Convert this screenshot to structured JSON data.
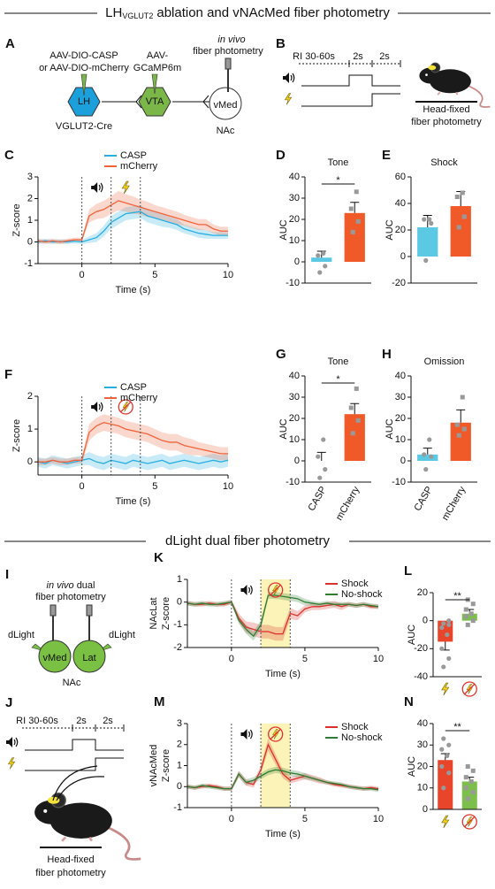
{
  "sections": [
    {
      "title_main": "LH",
      "title_sub": "VGLUT2",
      "title_rest": "ablation and vNAcMed fiber photometry"
    },
    {
      "title": "dLight dual fiber photometry"
    }
  ],
  "diagrams": {
    "A": {
      "panel": "A",
      "lh_virus": "AAV-DIO-CASP",
      "lh_virus2": "or AAV-DIO-mCherry",
      "vta_virus": "AAV-",
      "vta_virus2": "GCaMP6m",
      "fiber1": "in vivo",
      "fiber2": "fiber photometry",
      "lh": "LH",
      "vta": "VTA",
      "vmed": "vMed",
      "mouse": "VGLUT2-Cre",
      "nac": "NAc"
    },
    "B": {
      "panel": "B",
      "ri": "RI 30-60s",
      "t1": "2s",
      "t2": "2s",
      "caption1": "Head-fixed",
      "caption2": "fiber photometry"
    },
    "I": {
      "panel": "I",
      "fiber1a": "in vivo",
      "fiber1b": "dual",
      "fiber2": "fiber photometry",
      "dlight1": "dLight",
      "dlight2": "dLight",
      "vmed": "vMed",
      "lat": "Lat",
      "nac": "NAc"
    },
    "J": {
      "panel": "J",
      "ri": "RI 30-60s",
      "t1": "2s",
      "t2": "2s",
      "caption1": "Head-fixed",
      "caption2": "fiber photometry"
    }
  },
  "chart_data": [
    {
      "type": "line",
      "panel": "C",
      "xlabel": "Time (s)",
      "ylabel": "Z-score",
      "x": [
        -3,
        -2.5,
        -2,
        -1.5,
        -1,
        -0.5,
        0,
        0.5,
        1,
        1.5,
        2,
        2.5,
        3,
        3.5,
        4,
        4.5,
        5,
        5.5,
        6,
        6.5,
        7,
        7.5,
        8,
        8.5,
        9,
        9.5,
        10
      ],
      "xlim": [
        -3,
        10
      ],
      "xticks": [
        0,
        5,
        10
      ],
      "ylim": [
        -1,
        3
      ],
      "yticks": [
        -1,
        0,
        1,
        2,
        3
      ],
      "markers": [
        0,
        2,
        4
      ],
      "series": [
        {
          "name": "CASP",
          "color": "#29aee0",
          "values": [
            0,
            0.05,
            0,
            0.02,
            0,
            0.03,
            0,
            0.1,
            0.2,
            0.5,
            0.9,
            1.1,
            1.3,
            1.35,
            1.4,
            1.2,
            1.1,
            1.0,
            0.9,
            0.8,
            0.6,
            0.5,
            0.4,
            0.35,
            0.3,
            0.3,
            0.3
          ],
          "errors": [
            0.1,
            0.1,
            0.1,
            0.1,
            0.1,
            0.1,
            0.1,
            0.15,
            0.2,
            0.25,
            0.3,
            0.3,
            0.3,
            0.3,
            0.3,
            0.3,
            0.3,
            0.3,
            0.25,
            0.25,
            0.2,
            0.2,
            0.2,
            0.2,
            0.15,
            0.15,
            0.15
          ]
        },
        {
          "name": "mCherry",
          "color": "#f0643c",
          "values": [
            0.05,
            0,
            0.05,
            0,
            0.05,
            0.1,
            0.1,
            1.2,
            1.4,
            1.5,
            1.7,
            1.9,
            1.8,
            1.7,
            1.6,
            1.5,
            1.4,
            1.3,
            1.2,
            1.1,
            1.0,
            0.9,
            0.8,
            0.8,
            0.6,
            0.5,
            0.5
          ],
          "errors": [
            0.1,
            0.1,
            0.1,
            0.1,
            0.1,
            0.1,
            0.1,
            0.3,
            0.35,
            0.4,
            0.4,
            0.45,
            0.4,
            0.4,
            0.35,
            0.35,
            0.3,
            0.3,
            0.3,
            0.3,
            0.25,
            0.25,
            0.25,
            0.25,
            0.2,
            0.2,
            0.2
          ]
        }
      ]
    },
    {
      "type": "bar",
      "panel": "D",
      "title": "Tone",
      "ylabel": "AUC",
      "categories": [
        null,
        null
      ],
      "colors": [
        "#5bc8e4",
        "#f05a28"
      ],
      "values": [
        2,
        23
      ],
      "errors": [
        3,
        5
      ],
      "points": [
        [
          -5,
          -2,
          3,
          4
        ],
        [
          14,
          19,
          25,
          33
        ]
      ],
      "ylim": [
        -10,
        40
      ],
      "yticks": [
        -10,
        0,
        10,
        20,
        30,
        40
      ],
      "significance": "*"
    },
    {
      "type": "bar",
      "panel": "E",
      "title": "Shock",
      "ylabel": "AUC",
      "categories": [
        null,
        null
      ],
      "colors": [
        "#5bc8e4",
        "#f05a28"
      ],
      "values": [
        22,
        38
      ],
      "errors": [
        9,
        11
      ],
      "points": [
        [
          -3,
          25,
          28,
          28
        ],
        [
          22,
          30,
          45,
          48
        ]
      ],
      "ylim": [
        -20,
        60
      ],
      "yticks": [
        -20,
        0,
        20,
        40,
        60
      ]
    },
    {
      "type": "line",
      "panel": "F",
      "xlabel": "Time (s)",
      "ylabel": "Z-score",
      "x": [
        -3,
        -2.5,
        -2,
        -1.5,
        -1,
        -0.5,
        0,
        0.5,
        1,
        1.5,
        2,
        2.5,
        3,
        3.5,
        4,
        4.5,
        5,
        5.5,
        6,
        6.5,
        7,
        7.5,
        8,
        8.5,
        9,
        9.5,
        10
      ],
      "xlim": [
        -3,
        10
      ],
      "xticks": [
        0,
        5,
        10
      ],
      "ylim": [
        -0.4,
        2
      ],
      "yticks": [
        0,
        1,
        2
      ],
      "markers": [
        0,
        2,
        4
      ],
      "series": [
        {
          "name": "CASP",
          "color": "#29aee0",
          "values": [
            0,
            -0.05,
            0.05,
            0,
            -0.05,
            0,
            0.05,
            0.1,
            0,
            -0.05,
            0.05,
            0,
            -0.05,
            0.05,
            0,
            -0.05,
            0,
            0.05,
            -0.05,
            0,
            0.05,
            0,
            -0.05,
            0,
            0.05,
            0,
            0.05
          ],
          "errors": [
            0.15,
            0.15,
            0.15,
            0.15,
            0.15,
            0.15,
            0.15,
            0.2,
            0.2,
            0.2,
            0.2,
            0.2,
            0.2,
            0.2,
            0.2,
            0.2,
            0.2,
            0.2,
            0.2,
            0.2,
            0.2,
            0.2,
            0.2,
            0.2,
            0.2,
            0.2,
            0.2
          ]
        },
        {
          "name": "mCherry",
          "color": "#f0643c",
          "values": [
            0,
            0,
            0.05,
            0,
            0,
            0.05,
            0.05,
            0.9,
            1.1,
            1.2,
            1.15,
            1.1,
            1.0,
            0.95,
            0.9,
            0.85,
            0.75,
            0.65,
            0.6,
            0.6,
            0.5,
            0.45,
            0.4,
            0.35,
            0.3,
            0.25,
            0.25
          ],
          "errors": [
            0.1,
            0.1,
            0.1,
            0.1,
            0.1,
            0.1,
            0.1,
            0.25,
            0.25,
            0.25,
            0.25,
            0.25,
            0.25,
            0.25,
            0.25,
            0.25,
            0.25,
            0.25,
            0.25,
            0.25,
            0.25,
            0.25,
            0.2,
            0.2,
            0.2,
            0.2,
            0.2
          ]
        }
      ]
    },
    {
      "type": "bar",
      "panel": "G",
      "title": "Tone",
      "ylabel": "AUC",
      "categories": [
        "CASP",
        "mCherry"
      ],
      "colors": [
        "#5bc8e4",
        "#f05a28"
      ],
      "values": [
        0,
        22
      ],
      "errors": [
        4,
        5
      ],
      "points": [
        [
          -8,
          -4,
          2,
          10
        ],
        [
          13,
          19,
          25,
          34
        ]
      ],
      "ylim": [
        -10,
        40
      ],
      "yticks": [
        -10,
        0,
        10,
        20,
        30,
        40
      ],
      "significance": "*"
    },
    {
      "type": "bar",
      "panel": "H",
      "title": "Omission",
      "ylabel": "AUC",
      "categories": [
        "CASP",
        "mCherry"
      ],
      "colors": [
        "#5bc8e4",
        "#f05a28"
      ],
      "values": [
        3,
        18
      ],
      "errors": [
        3,
        6
      ],
      "points": [
        [
          -4,
          2,
          3,
          10
        ],
        [
          12,
          15,
          17,
          30
        ]
      ],
      "ylim": [
        -10,
        40
      ],
      "yticks": [
        -10,
        0,
        10,
        20,
        30,
        40
      ]
    },
    {
      "type": "line",
      "panel": "K",
      "xlabel": "Time (s)",
      "ylabel": [
        "NAcLat",
        "Z-score"
      ],
      "x": [
        -3,
        -2.5,
        -2,
        -1.5,
        -1,
        -0.5,
        0,
        0.5,
        1,
        1.5,
        2,
        2.5,
        3,
        3.5,
        4,
        4.5,
        5,
        5.5,
        6,
        6.5,
        7,
        7.5,
        8,
        8.5,
        9,
        9.5,
        10
      ],
      "xlim": [
        -3,
        10
      ],
      "xticks": [
        0,
        5,
        10
      ],
      "ylim": [
        -2,
        1
      ],
      "yticks": [
        -2,
        -1,
        0,
        1
      ],
      "markers": [
        0,
        2,
        4
      ],
      "highlight": [
        2,
        4
      ],
      "series": [
        {
          "name": "Shock",
          "color": "#d9312b",
          "values": [
            -0.05,
            -0.1,
            -0.1,
            -0.05,
            -0.1,
            -0.1,
            0,
            -0.7,
            -1.1,
            -1.2,
            -1.3,
            -1.3,
            -1.4,
            -1.4,
            -0.5,
            -0.6,
            -0.3,
            -0.2,
            -0.2,
            -0.15,
            -0.1,
            -0.2,
            -0.1,
            -0.15,
            -0.1,
            -0.2,
            -0.2
          ],
          "errors": [
            0.1,
            0.1,
            0.1,
            0.1,
            0.1,
            0.1,
            0.1,
            0.2,
            0.25,
            0.3,
            0.3,
            0.3,
            0.3,
            0.3,
            0.25,
            0.2,
            0.15,
            0.15,
            0.15,
            0.15,
            0.15,
            0.15,
            0.1,
            0.1,
            0.1,
            0.1,
            0.1
          ]
        },
        {
          "name": "No-shock",
          "color": "#2e7d32",
          "values": [
            -0.05,
            -0.1,
            -0.05,
            -0.1,
            -0.1,
            -0.05,
            0,
            -0.8,
            -1.2,
            -1.5,
            -1.0,
            0.3,
            0.3,
            0.25,
            0.2,
            0.15,
            0,
            -0.05,
            -0.1,
            -0.05,
            -0.1,
            -0.1,
            -0.1,
            -0.15,
            -0.1,
            -0.15,
            -0.2
          ],
          "errors": [
            0.1,
            0.1,
            0.1,
            0.1,
            0.1,
            0.1,
            0.1,
            0.15,
            0.2,
            0.2,
            0.2,
            0.15,
            0.15,
            0.15,
            0.15,
            0.15,
            0.15,
            0.1,
            0.1,
            0.1,
            0.1,
            0.1,
            0.1,
            0.1,
            0.1,
            0.1,
            0.1
          ]
        }
      ]
    },
    {
      "type": "bar",
      "panel": "L",
      "ylabel": "AUC",
      "categories": [
        null,
        null
      ],
      "colors": [
        "#e8452a",
        "#7cc04b"
      ],
      "values": [
        -15,
        5
      ],
      "errors": [
        6,
        3
      ],
      "points": [
        [
          -33,
          -27,
          -20,
          -10,
          -5,
          -3,
          -2,
          0
        ],
        [
          -3,
          0,
          3,
          5,
          8,
          12,
          15
        ]
      ],
      "ylim": [
        -40,
        20
      ],
      "yticks": [
        -40,
        -20,
        0,
        20
      ],
      "significance": "**",
      "icons": [
        "bolt",
        "noshock"
      ]
    },
    {
      "type": "line",
      "panel": "M",
      "xlabel": "Time (s)",
      "ylabel": [
        "vNAcMed",
        "Z-score"
      ],
      "x": [
        -3,
        -2.5,
        -2,
        -1.5,
        -1,
        -0.5,
        0,
        0.5,
        1,
        1.5,
        2,
        2.5,
        3,
        3.5,
        4,
        4.5,
        5,
        5.5,
        6,
        6.5,
        7,
        7.5,
        8,
        8.5,
        9,
        9.5,
        10
      ],
      "xlim": [
        -3,
        10
      ],
      "xticks": [
        0,
        5,
        10
      ],
      "ylim": [
        -1,
        3
      ],
      "yticks": [
        -1,
        0,
        1,
        2,
        3
      ],
      "markers": [
        0,
        2,
        4
      ],
      "highlight": [
        2,
        4
      ],
      "series": [
        {
          "name": "Shock",
          "color": "#d9312b",
          "values": [
            0,
            -0.05,
            0,
            0.05,
            0,
            -0.1,
            -0.1,
            0.6,
            0.2,
            0.1,
            0.8,
            2.0,
            1.3,
            0.6,
            0.3,
            0.4,
            0.5,
            0.4,
            0.3,
            0.2,
            0.1,
            0.05,
            0,
            -0.05,
            -0.1,
            -0.05,
            -0.1
          ],
          "errors": [
            0.1,
            0.1,
            0.1,
            0.1,
            0.1,
            0.1,
            0.1,
            0.15,
            0.15,
            0.15,
            0.2,
            0.3,
            0.25,
            0.2,
            0.15,
            0.15,
            0.15,
            0.15,
            0.15,
            0.1,
            0.1,
            0.1,
            0.1,
            0.1,
            0.1,
            0.1,
            0.1
          ]
        },
        {
          "name": "No-shock",
          "color": "#2e7d32",
          "values": [
            0,
            -0.05,
            0.05,
            0,
            -0.05,
            -0.1,
            -0.1,
            0.6,
            0.2,
            0.3,
            0.5,
            0.7,
            0.8,
            0.75,
            0.65,
            0.6,
            0.5,
            0.4,
            0.3,
            0.2,
            0.15,
            0.1,
            0,
            -0.05,
            -0.1,
            -0.1,
            -0.15
          ],
          "errors": [
            0.1,
            0.1,
            0.1,
            0.1,
            0.1,
            0.1,
            0.1,
            0.15,
            0.15,
            0.15,
            0.15,
            0.15,
            0.15,
            0.15,
            0.15,
            0.15,
            0.15,
            0.1,
            0.1,
            0.1,
            0.1,
            0.1,
            0.1,
            0.1,
            0.1,
            0.1,
            0.1
          ]
        }
      ]
    },
    {
      "type": "bar",
      "panel": "N",
      "ylabel": "AUC",
      "categories": [
        null,
        null
      ],
      "colors": [
        "#e8452a",
        "#7cc04b"
      ],
      "values": [
        23,
        13
      ],
      "errors": [
        3,
        2
      ],
      "points": [
        [
          10,
          17,
          20,
          25,
          28,
          30,
          33
        ],
        [
          5,
          8,
          10,
          13,
          15,
          18,
          20
        ]
      ],
      "ylim": [
        0,
        40
      ],
      "yticks": [
        0,
        10,
        20,
        30,
        40
      ],
      "significance": "**",
      "icons": [
        "bolt",
        "noshock"
      ]
    }
  ]
}
